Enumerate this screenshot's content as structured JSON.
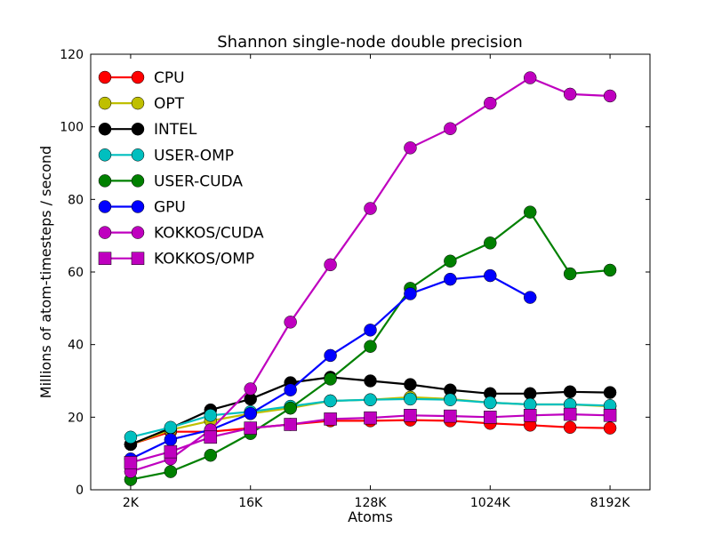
{
  "chart_data": {
    "type": "line",
    "title": "Shannon single-node double precision",
    "xlabel": "Atoms",
    "ylabel": "Millions of atom-timesteps / second",
    "x_scale": "log2",
    "x": [
      2048,
      4096,
      8192,
      16384,
      32768,
      65536,
      131072,
      262144,
      524288,
      1048576,
      2097152,
      4194304,
      8388608
    ],
    "x_tick_values": [
      2048,
      16384,
      131072,
      1048576,
      8388608
    ],
    "x_tick_labels": [
      "2K",
      "16K",
      "128K",
      "1024K",
      "8192K"
    ],
    "xlim": [
      1024,
      16777216
    ],
    "ylim": [
      0,
      120
    ],
    "y_ticks": [
      0,
      20,
      40,
      60,
      80,
      100,
      120
    ],
    "grid": false,
    "legend_position": "top-left",
    "series": [
      {
        "name": "CPU",
        "color": "#ff0000",
        "marker": "circle",
        "values": [
          12.5,
          16,
          16,
          17,
          18,
          19,
          19,
          19.2,
          19,
          18.3,
          17.8,
          17.2,
          17
        ]
      },
      {
        "name": "OPT",
        "color": "#bfbf00",
        "marker": "circle",
        "values": [
          12.5,
          16.5,
          19,
          21,
          22.5,
          24.5,
          24.8,
          25.5,
          25,
          24,
          23.5,
          23.5,
          23
        ]
      },
      {
        "name": "INTEL",
        "color": "#000000",
        "marker": "circle",
        "values": [
          12.5,
          17,
          22,
          25,
          29.5,
          31,
          30,
          29,
          27.5,
          26.5,
          26.5,
          27,
          26.8
        ]
      },
      {
        "name": "USER-OMP",
        "color": "#00bfbf",
        "marker": "circle",
        "values": [
          14.5,
          17.2,
          20.5,
          21.5,
          23,
          24.5,
          24.8,
          25,
          24.8,
          24,
          23.5,
          23.5,
          23.2
        ]
      },
      {
        "name": "USER-CUDA",
        "color": "#008000",
        "marker": "circle",
        "values": [
          2.8,
          5,
          9.5,
          15.5,
          22.5,
          30.5,
          39.5,
          55.5,
          63,
          68,
          76.5,
          59.5,
          60.5
        ]
      },
      {
        "name": "GPU",
        "color": "#0000ff",
        "marker": "circle",
        "values": [
          8.5,
          13.8,
          16.5,
          21,
          27.5,
          37,
          44,
          54,
          58,
          59,
          53,
          null,
          null
        ]
      },
      {
        "name": "KOKKOS/CUDA",
        "color": "#bf00bf",
        "marker": "circle",
        "values": [
          5,
          8.5,
          16.5,
          27.8,
          46.2,
          62,
          77.5,
          94.2,
          99.5,
          106.5,
          113.5,
          109,
          108.5
        ]
      },
      {
        "name": "KOKKOS/OMP",
        "color": "#bf00bf",
        "marker": "square",
        "values": [
          7.5,
          10.5,
          14.5,
          17,
          18,
          19.5,
          19.8,
          20.5,
          20.3,
          20,
          20.5,
          20.8,
          20.5
        ]
      }
    ]
  }
}
